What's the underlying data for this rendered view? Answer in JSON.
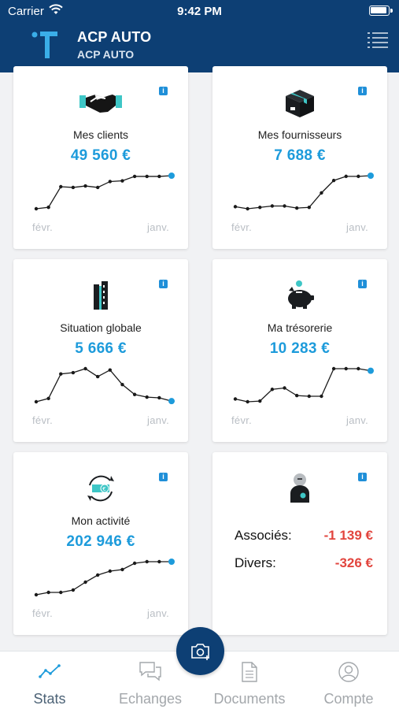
{
  "status_bar": {
    "carrier": "Carrier",
    "time": "9:42 PM"
  },
  "header": {
    "title": "ACP AUTO",
    "subtitle": "ACP AUTO"
  },
  "cards": [
    {
      "label": "Mes clients",
      "value": "49 560 €",
      "axis_start": "févr.",
      "axis_end": "janv.",
      "icon": "handshake-icon",
      "trend": [
        4,
        6,
        34,
        33,
        35,
        33,
        41,
        42,
        48,
        48,
        48,
        49
      ]
    },
    {
      "label": "Mes fournisseurs",
      "value": "7 688 €",
      "axis_start": "févr.",
      "axis_end": "janv.",
      "icon": "box-icon",
      "trend": [
        6,
        3,
        5,
        7,
        7,
        4,
        5,
        26,
        44,
        50,
        50,
        51
      ]
    },
    {
      "label": "Situation globale",
      "value": "5 666 €",
      "axis_start": "févr.",
      "axis_end": "janv.",
      "icon": "building-icon",
      "trend": [
        2,
        7,
        44,
        46,
        52,
        40,
        50,
        28,
        13,
        9,
        8,
        3
      ]
    },
    {
      "label": "Ma trésorerie",
      "value": "10 283 €",
      "axis_start": "févr.",
      "axis_end": "janv.",
      "icon": "piggy-bank-icon",
      "trend": [
        8,
        4,
        5,
        22,
        24,
        13,
        12,
        12,
        52,
        52,
        52,
        49
      ]
    },
    {
      "label": "Mon activité",
      "value": "202 946 €",
      "axis_start": "févr.",
      "axis_end": "janv.",
      "icon": "cash-cycle-icon",
      "trend": [
        2,
        5,
        5,
        8,
        18,
        27,
        32,
        34,
        42,
        44,
        44,
        44
      ]
    }
  ],
  "associates_card": {
    "rows": [
      {
        "label": "Associés:",
        "value": "-1 139 €"
      },
      {
        "label": "Divers:",
        "value": "-326 €"
      }
    ]
  },
  "tabbar": {
    "tabs": [
      {
        "label": "Stats",
        "icon": "chart-line-icon",
        "active": true
      },
      {
        "label": "Echanges",
        "icon": "chat-bubbles-icon",
        "active": false
      },
      {
        "label": "Documents",
        "icon": "document-icon",
        "active": false
      },
      {
        "label": "Compte",
        "icon": "account-icon",
        "active": false
      }
    ]
  },
  "colors": {
    "header": "#0d3f74",
    "accent": "#1d9bdb",
    "negative": "#e2453e",
    "teal": "#3ec6c6"
  }
}
